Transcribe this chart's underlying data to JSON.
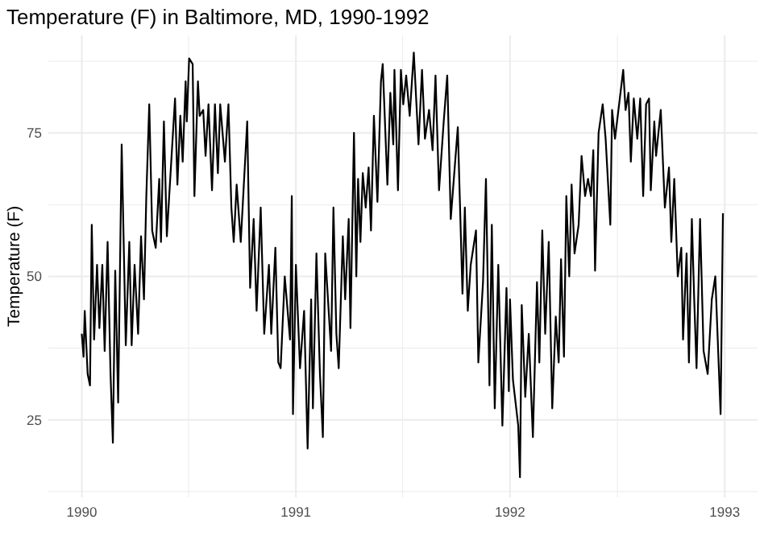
{
  "chart_data": {
    "type": "line",
    "title": "Temperature (F) in Baltimore, MD, 1990-1992",
    "ylabel": "Temperature (F)",
    "x": [
      "1990-01-01",
      "1990-01-04",
      "1990-01-06",
      "1990-01-11",
      "1990-01-15",
      "1990-01-18",
      "1990-01-22",
      "1990-01-27",
      "1990-01-31",
      "1990-02-05",
      "1990-02-09",
      "1990-02-14",
      "1990-02-19",
      "1990-02-23",
      "1990-02-27",
      "1990-03-04",
      "1990-03-10",
      "1990-03-17",
      "1990-03-23",
      "1990-03-27",
      "1990-04-01",
      "1990-04-07",
      "1990-04-12",
      "1990-04-17",
      "1990-04-21",
      "1990-04-26",
      "1990-05-01",
      "1990-05-07",
      "1990-05-13",
      "1990-05-16",
      "1990-05-21",
      "1990-05-26",
      "1990-05-30",
      "1990-06-06",
      "1990-06-09",
      "1990-06-13",
      "1990-06-18",
      "1990-06-22",
      "1990-06-27",
      "1990-06-29",
      "1990-07-03",
      "1990-07-09",
      "1990-07-12",
      "1990-07-18",
      "1990-07-21",
      "1990-07-27",
      "1990-07-31",
      "1990-08-05",
      "1990-08-11",
      "1990-08-16",
      "1990-08-21",
      "1990-08-25",
      "1990-09-02",
      "1990-09-08",
      "1990-09-13",
      "1990-09-17",
      "1990-09-22",
      "1990-09-29",
      "1990-10-10",
      "1990-10-15",
      "1990-10-21",
      "1990-10-26",
      "1990-11-02",
      "1990-11-08",
      "1990-11-16",
      "1990-11-20",
      "1990-11-27",
      "1990-12-02",
      "1990-12-06",
      "1990-12-13",
      "1990-12-22",
      "1990-12-25",
      "1990-12-27",
      "1991-01-01",
      "1991-01-08",
      "1991-01-15",
      "1991-01-21",
      "1991-01-27",
      "1991-01-30",
      "1991-02-05",
      "1991-02-11",
      "1991-02-16",
      "1991-02-20",
      "1991-03-02",
      "1991-03-06",
      "1991-03-11",
      "1991-03-15",
      "1991-03-22",
      "1991-03-26",
      "1991-04-01",
      "1991-04-04",
      "1991-04-10",
      "1991-04-14",
      "1991-04-17",
      "1991-04-21",
      "1991-04-25",
      "1991-04-30",
      "1991-05-05",
      "1991-05-09",
      "1991-05-14",
      "1991-05-20",
      "1991-05-26",
      "1991-05-29",
      "1991-06-06",
      "1991-06-11",
      "1991-06-16",
      "1991-06-18",
      "1991-06-24",
      "1991-06-29",
      "1991-07-03",
      "1991-07-08",
      "1991-07-14",
      "1991-07-21",
      "1991-07-29",
      "1991-08-04",
      "1991-08-09",
      "1991-08-16",
      "1991-08-22",
      "1991-08-27",
      "1991-09-02",
      "1991-09-10",
      "1991-09-16",
      "1991-09-22",
      "1991-10-04",
      "1991-10-12",
      "1991-10-16",
      "1991-10-21",
      "1991-10-26",
      "1991-11-04",
      "1991-11-08",
      "1991-11-16",
      "1991-11-21",
      "1991-11-27",
      "1991-12-01",
      "1991-12-06",
      "1991-12-12",
      "1991-12-19",
      "1991-12-26",
      "1991-12-30",
      "1992-01-01",
      "1992-01-06",
      "1992-01-15",
      "1992-01-18",
      "1992-01-21",
      "1992-01-27",
      "1992-02-02",
      "1992-02-09",
      "1992-02-16",
      "1992-02-20",
      "1992-02-25",
      "1992-03-01",
      "1992-03-07",
      "1992-03-13",
      "1992-03-19",
      "1992-03-24",
      "1992-03-28",
      "1992-04-02",
      "1992-04-06",
      "1992-04-11",
      "1992-04-15",
      "1992-04-20",
      "1992-04-27",
      "1992-05-02",
      "1992-05-08",
      "1992-05-13",
      "1992-05-18",
      "1992-05-22",
      "1992-05-25",
      "1992-05-31",
      "1992-06-07",
      "1992-06-12",
      "1992-06-20",
      "1992-06-23",
      "1992-06-28",
      "1992-07-12",
      "1992-07-16",
      "1992-07-21",
      "1992-07-25",
      "1992-07-30",
      "1992-08-05",
      "1992-08-10",
      "1992-08-15",
      "1992-08-20",
      "1992-08-25",
      "1992-08-28",
      "1992-09-03",
      "1992-09-06",
      "1992-09-14",
      "1992-09-21",
      "1992-09-28",
      "1992-10-02",
      "1992-10-07",
      "1992-10-13",
      "1992-10-19",
      "1992-10-22",
      "1992-10-28",
      "1992-11-01",
      "1992-11-06",
      "1992-11-10",
      "1992-11-14",
      "1992-11-20",
      "1992-11-26",
      "1992-12-03",
      "1992-12-10",
      "1992-12-16",
      "1992-12-22",
      "1992-12-25",
      "1992-12-29"
    ],
    "series": [
      {
        "color": "#000000",
        "values": [
          40,
          36,
          44,
          33,
          31,
          59,
          39,
          52,
          41,
          52,
          37,
          56,
          33,
          21,
          51,
          28,
          73,
          38,
          56,
          38,
          52,
          40,
          57,
          46,
          64,
          80,
          58,
          55,
          67,
          56,
          77,
          57,
          64,
          76,
          81,
          66,
          78,
          70,
          84,
          77,
          88,
          87,
          64,
          84,
          78,
          79,
          71,
          80,
          65,
          80,
          68,
          80,
          70,
          80,
          62,
          56,
          66,
          56,
          77,
          48,
          60,
          44,
          62,
          40,
          52,
          40,
          55,
          35,
          34,
          50,
          39,
          64,
          26,
          52,
          34,
          44,
          20,
          46,
          27,
          54,
          33,
          22,
          54,
          37,
          62,
          40,
          34,
          57,
          46,
          60,
          41,
          75,
          50,
          67,
          56,
          68,
          62,
          69,
          58,
          78,
          63,
          84,
          87,
          66,
          82,
          73,
          86,
          65,
          86,
          80,
          85,
          78,
          89,
          73,
          86,
          74,
          79,
          72,
          85,
          65,
          77,
          85,
          60,
          76,
          47,
          62,
          44,
          52,
          58,
          35,
          49,
          67,
          31,
          59,
          27,
          52,
          24,
          48,
          30,
          46,
          32,
          24,
          15,
          45,
          29,
          40,
          22,
          49,
          35,
          58,
          40,
          56,
          27,
          43,
          35,
          53,
          36,
          64,
          50,
          66,
          54,
          59,
          71,
          64,
          67,
          64,
          72,
          51,
          75,
          80,
          74,
          59,
          79,
          74,
          86,
          79,
          82,
          70,
          81,
          74,
          81,
          64,
          80,
          81,
          65,
          77,
          71,
          79,
          62,
          69,
          56,
          67,
          50,
          55,
          39,
          54,
          35,
          60,
          46,
          34,
          60,
          37,
          33,
          46,
          50,
          34,
          26,
          61
        ]
      }
    ],
    "xlim": [
      "1989-11-05",
      "1993-02-26"
    ],
    "xticks": [
      {
        "value": "1990-01-01",
        "label": "1990"
      },
      {
        "value": "1990-07-02",
        "label": null
      },
      {
        "value": "1991-01-01",
        "label": "1991"
      },
      {
        "value": "1991-07-02",
        "label": null
      },
      {
        "value": "1992-01-01",
        "label": "1992"
      },
      {
        "value": "1992-07-02",
        "label": null
      },
      {
        "value": "1993-01-01",
        "label": "1993"
      }
    ],
    "ylim": [
      11.5,
      92
    ],
    "yticks": [
      {
        "value": 12.5,
        "label": null
      },
      25,
      {
        "value": 37.5,
        "label": null
      },
      50,
      {
        "value": 62.5,
        "label": null
      },
      75,
      {
        "value": 87.5,
        "label": null
      }
    ],
    "grid": true,
    "line_style": "solid",
    "marker": "none"
  }
}
